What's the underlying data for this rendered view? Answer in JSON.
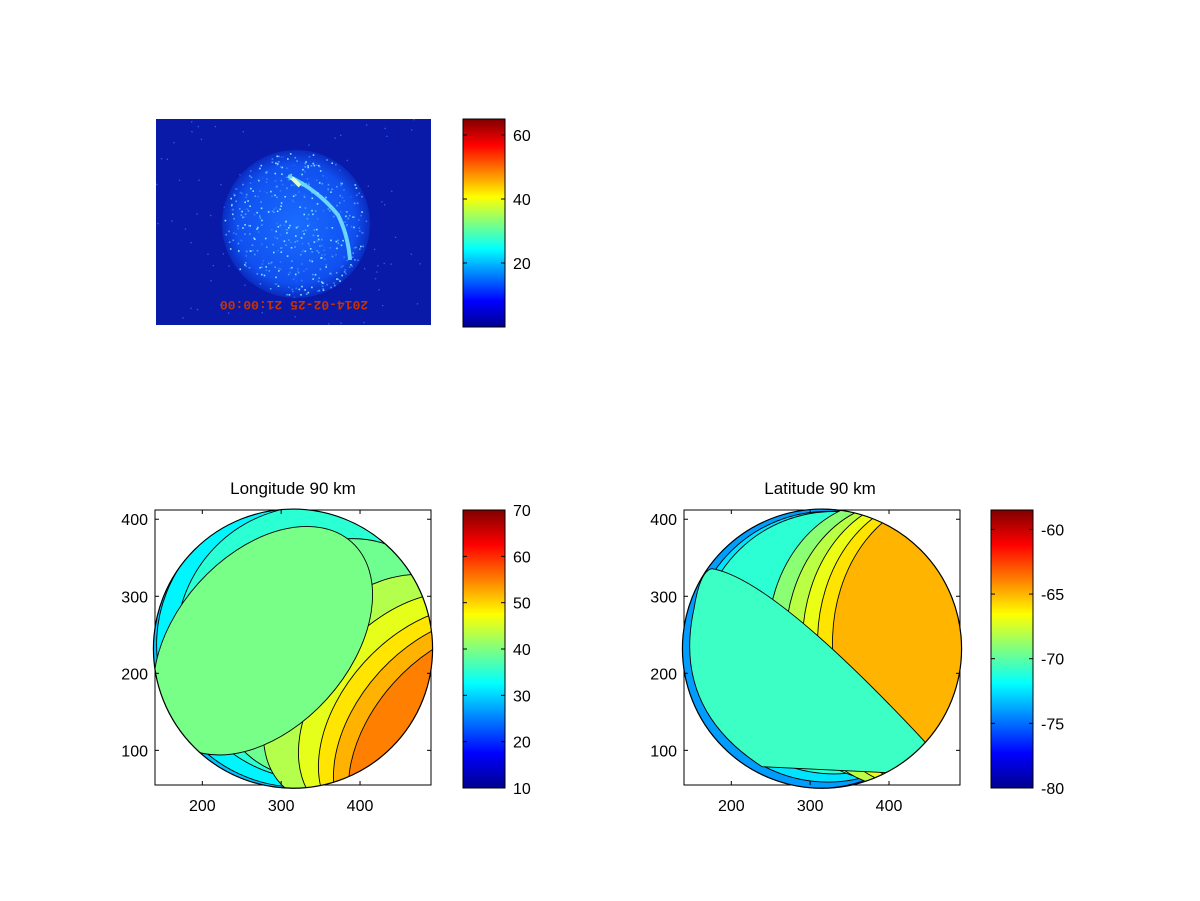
{
  "colors": {
    "background": "#ffffff",
    "axes": "#000000",
    "jet_stops": [
      "#00008f",
      "#0000ff",
      "#00ffff",
      "#ffff00",
      "#ff0000",
      "#800000"
    ]
  },
  "chart_data": [
    {
      "type": "heatmap",
      "panel": "raw-image",
      "title": "",
      "description_hidden": true,
      "timestamp_overlay": "2014-02-25 21:00:00",
      "timestamp_mirrored": true,
      "colorbar": {
        "min": 0,
        "max": 65,
        "ticks": [
          20,
          40,
          60
        ]
      },
      "axes_visible": false
    },
    {
      "type": "heatmap",
      "panel": "longitude",
      "title": "Longitude 90 km",
      "xlim": [
        140,
        490
      ],
      "ylim": [
        55,
        412
      ],
      "xticks": [
        200,
        300,
        400
      ],
      "yticks": [
        100,
        200,
        300,
        400
      ],
      "colorbar": {
        "min": 10,
        "max": 70,
        "ticks": [
          10,
          20,
          30,
          40,
          50,
          60,
          70
        ]
      },
      "contour_levels": [
        32,
        35,
        39,
        43,
        46,
        49,
        52,
        55
      ],
      "disk_center": [
        315,
        232
      ],
      "disk_radius": 177
    },
    {
      "type": "heatmap",
      "panel": "latitude",
      "title": "Latitude 90 km",
      "xlim": [
        140,
        490
      ],
      "ylim": [
        55,
        412
      ],
      "xticks": [
        200,
        300,
        400
      ],
      "yticks": [
        100,
        200,
        300,
        400
      ],
      "colorbar": {
        "min": -80,
        "max": -58.5,
        "ticks": [
          -80,
          -75,
          -70,
          -65,
          -60
        ]
      },
      "contour_levels": [
        -74,
        -72.5,
        -71,
        -69,
        -68,
        -67,
        -66,
        -65
      ],
      "disk_center": [
        315,
        232
      ],
      "disk_radius": 177
    }
  ]
}
